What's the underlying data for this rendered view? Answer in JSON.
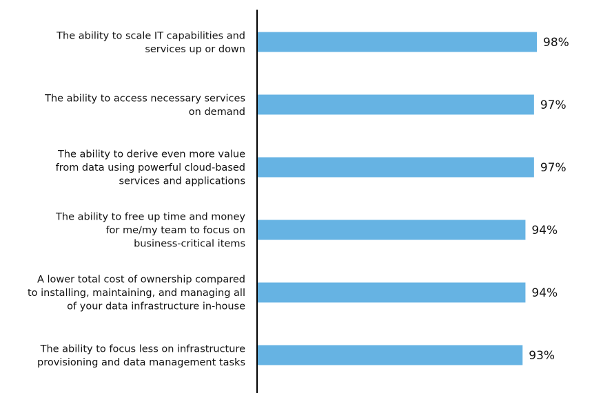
{
  "chart_data": {
    "type": "bar",
    "orientation": "horizontal",
    "title": "",
    "xlabel": "",
    "ylabel": "",
    "categories": [
      [
        "The ability to scale IT capabilities and",
        "services up or down"
      ],
      [
        "The ability to access necessary services",
        "on demand"
      ],
      [
        "The ability to derive even more value",
        "from data using powerful cloud-based",
        "services and applications"
      ],
      [
        "The ability to free up time and money",
        "for me/my team to focus on",
        "business-critical items"
      ],
      [
        "A lower total cost of ownership compared",
        "to  installing, maintaining, and managing all",
        "of your data infrastructure in-house"
      ],
      [
        "The ability to focus less on infrastructure",
        "provisioning and data management tasks"
      ]
    ],
    "values": [
      98,
      97,
      97,
      94,
      94,
      93
    ],
    "value_labels": [
      "98%",
      "97%",
      "97%",
      "94%",
      "94%",
      "93%"
    ],
    "xlim": [
      0,
      100
    ],
    "grid": false,
    "legend": "none",
    "bar_color": "#66b3e3",
    "axis_color": "#000000"
  }
}
